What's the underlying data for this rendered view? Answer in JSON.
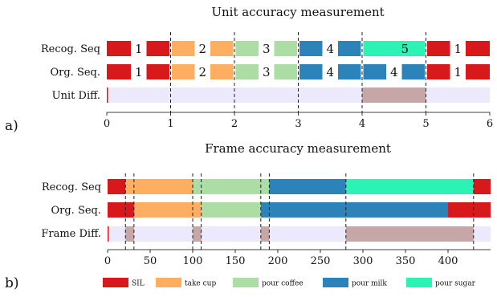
{
  "colors": {
    "SIL": "#d7191c",
    "take cup": "#fdae61",
    "pour coffee": "#abdda4",
    "pour milk": "#2b83ba",
    "pour sugar": "#2cf2b6",
    "diff_bg": "#ebe9fb",
    "diff_mark": "#c6a6a6"
  },
  "legend": [
    {
      "label": "SIL",
      "color": "#d7191c"
    },
    {
      "label": "take cup",
      "color": "#fdae61"
    },
    {
      "label": "pour coffee",
      "color": "#abdda4"
    },
    {
      "label": "pour milk",
      "color": "#2b83ba"
    },
    {
      "label": "pour sugar",
      "color": "#2cf2b6"
    }
  ],
  "panels": [
    {
      "id": "a",
      "panel_label": "a)",
      "title": "Unit accuracy measurement",
      "x_ticks": [
        "0",
        "1",
        "2",
        "3",
        "4",
        "5",
        "6"
      ],
      "x_range": [
        0,
        6
      ],
      "boundaries": [
        1,
        2,
        3,
        4,
        5
      ],
      "rows": [
        {
          "label": "Recog. Seq",
          "units": [
            {
              "action": "SIL",
              "text": "1"
            },
            {
              "action": "take cup",
              "text": "2"
            },
            {
              "action": "pour coffee",
              "text": "3"
            },
            {
              "action": "pour milk",
              "text": "4"
            },
            {
              "action": "pour sugar",
              "text": "5"
            },
            {
              "action": "SIL",
              "text": "1"
            }
          ]
        },
        {
          "label": "Org. Seq.",
          "units": [
            {
              "action": "SIL",
              "text": "1"
            },
            {
              "action": "take cup",
              "text": "2"
            },
            {
              "action": "pour coffee",
              "text": "3"
            },
            {
              "action": "pour milk",
              "text": "4"
            },
            {
              "action": "pour milk",
              "text": "4"
            },
            {
              "action": "SIL",
              "text": "1"
            }
          ]
        }
      ],
      "diff": {
        "label": "Unit Diff.",
        "spans": [
          [
            4,
            5
          ]
        ]
      }
    },
    {
      "id": "b",
      "panel_label": "b)",
      "title": "Frame accuracy measurement",
      "x_ticks": [
        "0",
        "50",
        "100",
        "150",
        "200",
        "250",
        "300",
        "350",
        "400"
      ],
      "x_range": [
        0,
        450
      ],
      "boundaries": [
        21,
        31,
        100,
        110,
        180,
        190,
        280,
        430
      ],
      "rows": [
        {
          "label": "Recog. Seq",
          "segments": [
            {
              "action": "SIL",
              "start": 0,
              "end": 21
            },
            {
              "action": "take cup",
              "start": 21,
              "end": 100
            },
            {
              "action": "pour coffee",
              "start": 100,
              "end": 190
            },
            {
              "action": "pour milk",
              "start": 190,
              "end": 280
            },
            {
              "action": "pour sugar",
              "start": 280,
              "end": 430
            },
            {
              "action": "SIL",
              "start": 430,
              "end": 450
            }
          ]
        },
        {
          "label": "Org. Seq.",
          "segments": [
            {
              "action": "SIL",
              "start": 0,
              "end": 31
            },
            {
              "action": "take cup",
              "start": 31,
              "end": 110
            },
            {
              "action": "pour coffee",
              "start": 110,
              "end": 180
            },
            {
              "action": "pour milk",
              "start": 180,
              "end": 400
            },
            {
              "action": "SIL",
              "start": 400,
              "end": 450
            }
          ]
        }
      ],
      "diff": {
        "label": "Frame Diff.",
        "spans": [
          [
            21,
            31
          ],
          [
            100,
            110
          ],
          [
            180,
            190
          ],
          [
            280,
            430
          ]
        ]
      }
    }
  ]
}
